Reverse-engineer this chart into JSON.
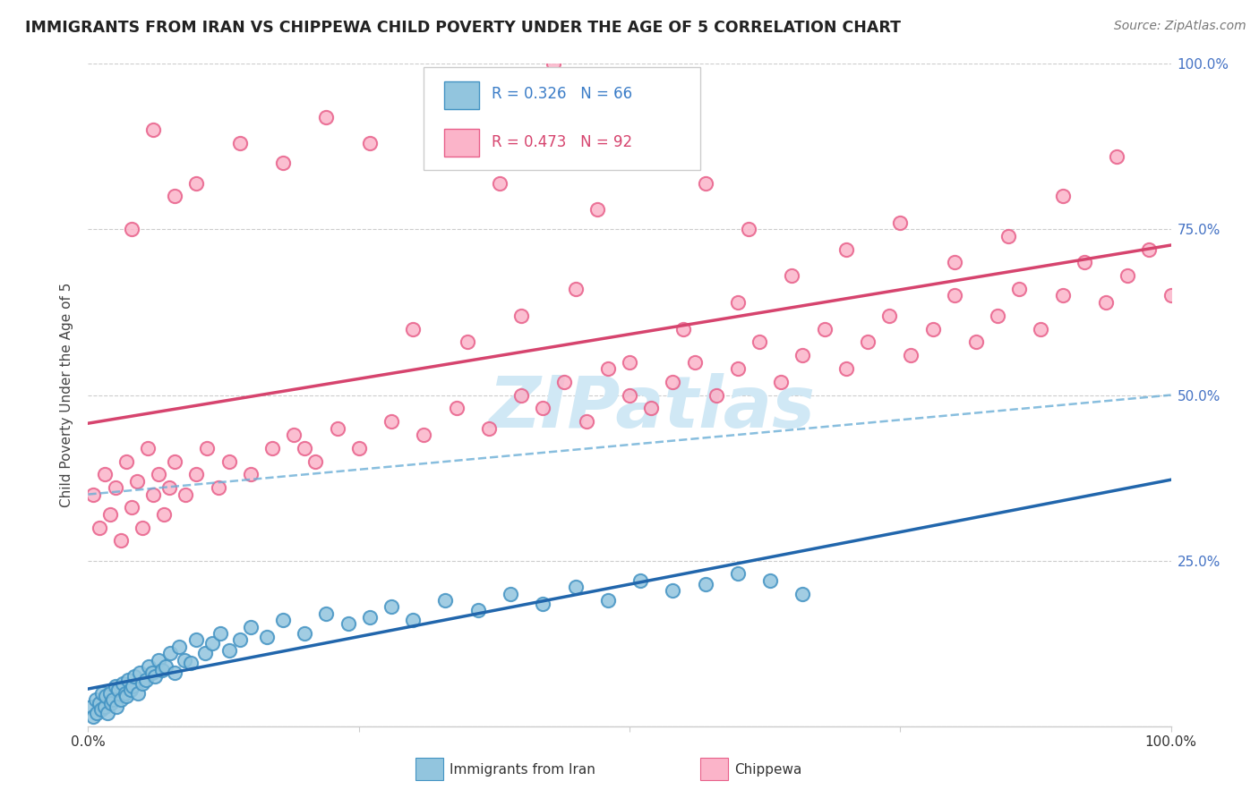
{
  "title": "IMMIGRANTS FROM IRAN VS CHIPPEWA CHILD POVERTY UNDER THE AGE OF 5 CORRELATION CHART",
  "source": "Source: ZipAtlas.com",
  "ylabel": "Child Poverty Under the Age of 5",
  "legend_blue_r": "R = 0.326",
  "legend_blue_n": "N = 66",
  "legend_pink_r": "R = 0.473",
  "legend_pink_n": "N = 92",
  "blue_color": "#92c5de",
  "blue_edge_color": "#4393c3",
  "pink_color": "#fbb4c9",
  "pink_edge_color": "#e8608a",
  "blue_line_color": "#2166ac",
  "blue_dash_color": "#6baed6",
  "pink_line_color": "#d6446e",
  "watermark_color": "#d0e8f5",
  "right_tick_color": "#4472c4",
  "xtick_label_color": "#333333",
  "title_color": "#222222",
  "source_color": "#777777",
  "grid_color": "#cccccc",
  "xlim": [
    0,
    100
  ],
  "ylim": [
    0,
    100
  ],
  "xticks": [
    0,
    25,
    50,
    75,
    100
  ],
  "xtick_labels": [
    "0.0%",
    "",
    "",
    "",
    "100.0%"
  ],
  "yticks": [
    0,
    25,
    50,
    75,
    100
  ],
  "ytick_labels_right": [
    "",
    "25.0%",
    "50.0%",
    "75.0%",
    "100.0%"
  ],
  "blue_x": [
    0.3,
    0.5,
    0.7,
    0.8,
    1.0,
    1.2,
    1.3,
    1.5,
    1.6,
    1.8,
    2.0,
    2.1,
    2.3,
    2.5,
    2.6,
    2.8,
    3.0,
    3.2,
    3.4,
    3.5,
    3.7,
    3.9,
    4.1,
    4.3,
    4.6,
    4.8,
    5.0,
    5.3,
    5.6,
    5.9,
    6.2,
    6.5,
    6.8,
    7.2,
    7.6,
    8.0,
    8.4,
    8.9,
    9.5,
    10.0,
    10.8,
    11.5,
    12.2,
    13.0,
    14.0,
    15.0,
    16.5,
    18.0,
    20.0,
    22.0,
    24.0,
    26.0,
    28.0,
    30.0,
    33.0,
    36.0,
    39.0,
    42.0,
    45.0,
    48.0,
    51.0,
    54.0,
    57.0,
    60.0,
    63.0,
    66.0
  ],
  "blue_y": [
    3.0,
    1.5,
    4.0,
    2.0,
    3.5,
    2.5,
    5.0,
    3.0,
    4.5,
    2.0,
    5.0,
    3.5,
    4.0,
    6.0,
    3.0,
    5.5,
    4.0,
    6.5,
    5.0,
    4.5,
    7.0,
    5.5,
    6.0,
    7.5,
    5.0,
    8.0,
    6.5,
    7.0,
    9.0,
    8.0,
    7.5,
    10.0,
    8.5,
    9.0,
    11.0,
    8.0,
    12.0,
    10.0,
    9.5,
    13.0,
    11.0,
    12.5,
    14.0,
    11.5,
    13.0,
    15.0,
    13.5,
    16.0,
    14.0,
    17.0,
    15.5,
    16.5,
    18.0,
    16.0,
    19.0,
    17.5,
    20.0,
    18.5,
    21.0,
    19.0,
    22.0,
    20.5,
    21.5,
    23.0,
    22.0,
    20.0
  ],
  "pink_x": [
    0.5,
    1.0,
    1.5,
    2.0,
    2.5,
    3.0,
    3.5,
    4.0,
    4.5,
    5.0,
    5.5,
    6.0,
    6.5,
    7.0,
    7.5,
    8.0,
    9.0,
    10.0,
    11.0,
    12.0,
    13.0,
    15.0,
    17.0,
    19.0,
    21.0,
    23.0,
    25.0,
    28.0,
    31.0,
    34.0,
    37.0,
    40.0,
    42.0,
    44.0,
    46.0,
    48.0,
    50.0,
    52.0,
    54.0,
    56.0,
    58.0,
    60.0,
    62.0,
    64.0,
    66.0,
    68.0,
    70.0,
    72.0,
    74.0,
    76.0,
    78.0,
    80.0,
    82.0,
    84.0,
    86.0,
    88.0,
    90.0,
    92.0,
    94.0,
    96.0,
    98.0,
    100.0,
    35.0,
    40.0,
    45.0,
    55.0,
    60.0,
    65.0,
    70.0,
    75.0,
    80.0,
    85.0,
    90.0,
    95.0,
    30.0,
    50.0,
    20.0,
    8.0,
    4.0,
    6.0,
    10.0,
    14.0,
    18.0,
    22.0,
    26.0,
    33.0,
    38.0,
    43.0,
    47.0,
    53.0,
    57.0,
    61.0
  ],
  "pink_y": [
    35.0,
    30.0,
    38.0,
    32.0,
    36.0,
    28.0,
    40.0,
    33.0,
    37.0,
    30.0,
    42.0,
    35.0,
    38.0,
    32.0,
    36.0,
    40.0,
    35.0,
    38.0,
    42.0,
    36.0,
    40.0,
    38.0,
    42.0,
    44.0,
    40.0,
    45.0,
    42.0,
    46.0,
    44.0,
    48.0,
    45.0,
    50.0,
    48.0,
    52.0,
    46.0,
    54.0,
    50.0,
    48.0,
    52.0,
    55.0,
    50.0,
    54.0,
    58.0,
    52.0,
    56.0,
    60.0,
    54.0,
    58.0,
    62.0,
    56.0,
    60.0,
    65.0,
    58.0,
    62.0,
    66.0,
    60.0,
    65.0,
    70.0,
    64.0,
    68.0,
    72.0,
    65.0,
    58.0,
    62.0,
    66.0,
    60.0,
    64.0,
    68.0,
    72.0,
    76.0,
    70.0,
    74.0,
    80.0,
    86.0,
    60.0,
    55.0,
    42.0,
    80.0,
    75.0,
    90.0,
    82.0,
    88.0,
    85.0,
    92.0,
    88.0,
    95.0,
    82.0,
    100.0,
    78.0,
    88.0,
    82.0,
    75.0
  ]
}
